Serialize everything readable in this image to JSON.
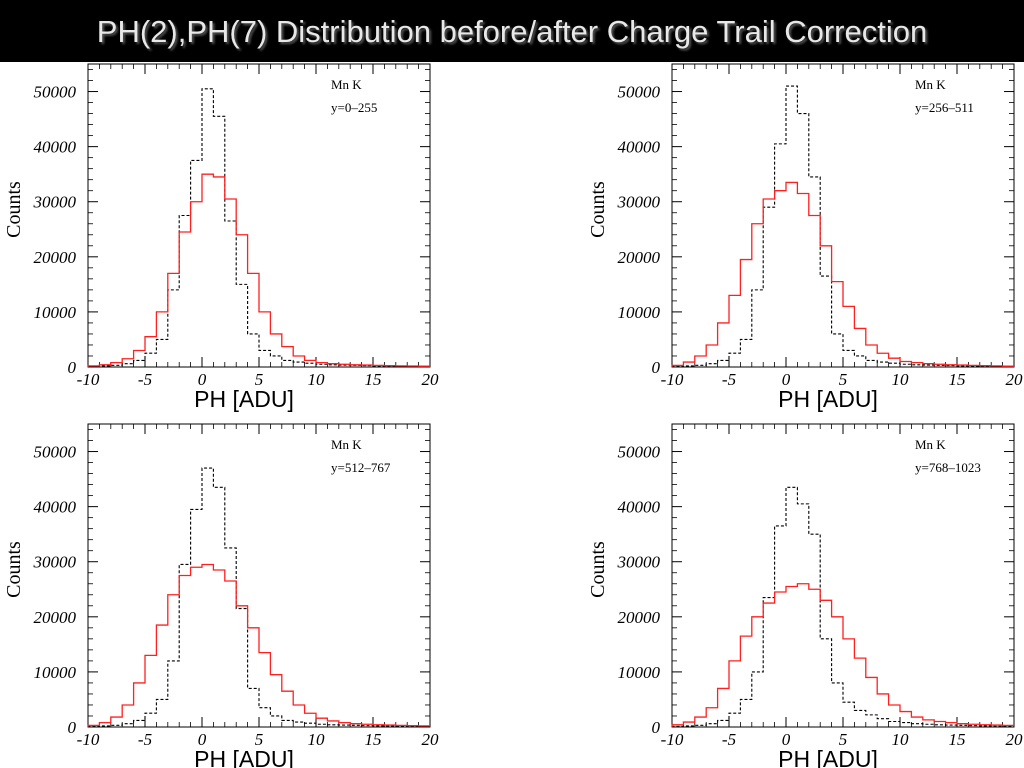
{
  "header": {
    "title": "PH(2),PH(7) Distribution before/after Charge Trail Correction"
  },
  "colors": {
    "before": "#000000",
    "after": "#ff2020",
    "title_bg": "#000000",
    "title_text": "#e8e8e8"
  },
  "chart_data": [
    {
      "type": "histogram",
      "xlabel": "PH [ADU]",
      "ylabel": "Counts",
      "annotation_lines": [
        "Mn K",
        "y=0–255"
      ],
      "xlim": [
        -10,
        20
      ],
      "ylim": [
        0,
        55000
      ],
      "xticks": [
        -10,
        -5,
        0,
        5,
        10,
        15,
        20
      ],
      "yticks": [
        0,
        10000,
        20000,
        30000,
        40000,
        50000
      ],
      "bin_edges": [
        -10,
        -9,
        -8,
        -7,
        -6,
        -5,
        -4,
        -3,
        -2,
        -1,
        0,
        1,
        2,
        3,
        4,
        5,
        6,
        7,
        8,
        9,
        10,
        11,
        12,
        13,
        14,
        15,
        16,
        17,
        18,
        19,
        20
      ],
      "series": [
        {
          "style": "dashed",
          "color": "#000000",
          "values": [
            100,
            200,
            300,
            600,
            1200,
            2500,
            5000,
            14000,
            27500,
            37500,
            50500,
            45500,
            26500,
            15000,
            6000,
            3000,
            2000,
            1200,
            900,
            700,
            500,
            400,
            350,
            300,
            250,
            200,
            180,
            150,
            120,
            100
          ]
        },
        {
          "style": "solid",
          "color": "#ff2020",
          "values": [
            200,
            400,
            800,
            1500,
            3000,
            5500,
            10000,
            17000,
            24500,
            30000,
            35000,
            34500,
            30500,
            24000,
            17000,
            10000,
            6000,
            3700,
            2000,
            1200,
            800,
            600,
            500,
            400,
            350,
            300,
            250,
            200,
            180,
            150
          ]
        }
      ]
    },
    {
      "type": "histogram",
      "xlabel": "PH [ADU]",
      "ylabel": "Counts",
      "annotation_lines": [
        "Mn K",
        "y=256–511"
      ],
      "xlim": [
        -10,
        20
      ],
      "ylim": [
        0,
        55000
      ],
      "xticks": [
        -10,
        -5,
        0,
        5,
        10,
        15,
        20
      ],
      "yticks": [
        0,
        10000,
        20000,
        30000,
        40000,
        50000
      ],
      "bin_edges": [
        -10,
        -9,
        -8,
        -7,
        -6,
        -5,
        -4,
        -3,
        -2,
        -1,
        0,
        1,
        2,
        3,
        4,
        5,
        6,
        7,
        8,
        9,
        10,
        11,
        12,
        13,
        14,
        15,
        16,
        17,
        18,
        19,
        20
      ],
      "series": [
        {
          "style": "dashed",
          "color": "#000000",
          "values": [
            100,
            200,
            300,
            600,
            1200,
            2500,
            5000,
            14000,
            29000,
            40500,
            51000,
            46000,
            34500,
            16500,
            6000,
            3000,
            2000,
            1200,
            900,
            700,
            500,
            400,
            350,
            300,
            250,
            200,
            180,
            150,
            120,
            100
          ]
        },
        {
          "style": "solid",
          "color": "#ff2020",
          "values": [
            300,
            900,
            2000,
            4000,
            8000,
            13000,
            19500,
            26000,
            30500,
            32000,
            33500,
            31500,
            27500,
            22000,
            15500,
            11000,
            7000,
            4000,
            2500,
            1600,
            1000,
            800,
            600,
            500,
            400,
            350,
            300,
            250,
            200,
            150
          ]
        }
      ]
    },
    {
      "type": "histogram",
      "xlabel": "PH [ADU]",
      "ylabel": "Counts",
      "annotation_lines": [
        "Mn K",
        "y=512–767"
      ],
      "xlim": [
        -10,
        20
      ],
      "ylim": [
        0,
        55000
      ],
      "xticks": [
        -10,
        -5,
        0,
        5,
        10,
        15,
        20
      ],
      "yticks": [
        0,
        10000,
        20000,
        30000,
        40000,
        50000
      ],
      "bin_edges": [
        -10,
        -9,
        -8,
        -7,
        -6,
        -5,
        -4,
        -3,
        -2,
        -1,
        0,
        1,
        2,
        3,
        4,
        5,
        6,
        7,
        8,
        9,
        10,
        11,
        12,
        13,
        14,
        15,
        16,
        17,
        18,
        19,
        20
      ],
      "series": [
        {
          "style": "dashed",
          "color": "#000000",
          "values": [
            100,
            200,
            300,
            600,
            1200,
            2500,
            5000,
            12000,
            29500,
            39500,
            47000,
            43500,
            32500,
            21500,
            7000,
            3500,
            2000,
            1200,
            900,
            700,
            500,
            400,
            350,
            300,
            250,
            200,
            180,
            150,
            120,
            100
          ]
        },
        {
          "style": "solid",
          "color": "#ff2020",
          "values": [
            300,
            800,
            1800,
            4000,
            8000,
            13000,
            18500,
            24000,
            27500,
            29000,
            29500,
            28500,
            26500,
            22000,
            18000,
            13500,
            9500,
            6500,
            4000,
            2500,
            1600,
            1100,
            800,
            600,
            500,
            400,
            350,
            300,
            250,
            200
          ]
        }
      ]
    },
    {
      "type": "histogram",
      "xlabel": "PH [ADU]",
      "ylabel": "Counts",
      "annotation_lines": [
        "Mn K",
        "y=768–1023"
      ],
      "xlim": [
        -10,
        20
      ],
      "ylim": [
        0,
        55000
      ],
      "xticks": [
        -10,
        -5,
        0,
        5,
        10,
        15,
        20
      ],
      "yticks": [
        0,
        10000,
        20000,
        30000,
        40000,
        50000
      ],
      "bin_edges": [
        -10,
        -9,
        -8,
        -7,
        -6,
        -5,
        -4,
        -3,
        -2,
        -1,
        0,
        1,
        2,
        3,
        4,
        5,
        6,
        7,
        8,
        9,
        10,
        11,
        12,
        13,
        14,
        15,
        16,
        17,
        18,
        19,
        20
      ],
      "series": [
        {
          "style": "dashed",
          "color": "#000000",
          "values": [
            100,
            200,
            300,
            600,
            1200,
            2500,
            5000,
            10000,
            23500,
            36500,
            43500,
            40500,
            35000,
            16000,
            8000,
            4500,
            3000,
            2200,
            1500,
            1000,
            800,
            600,
            500,
            400,
            350,
            300,
            250,
            200,
            150,
            120
          ]
        },
        {
          "style": "solid",
          "color": "#ff2020",
          "values": [
            400,
            900,
            1800,
            3500,
            7000,
            12000,
            16500,
            20000,
            22500,
            24500,
            25500,
            26000,
            25000,
            23000,
            20000,
            16000,
            12500,
            9000,
            6000,
            4000,
            2800,
            1800,
            1300,
            1000,
            800,
            600,
            500,
            400,
            350,
            300
          ]
        }
      ]
    }
  ]
}
